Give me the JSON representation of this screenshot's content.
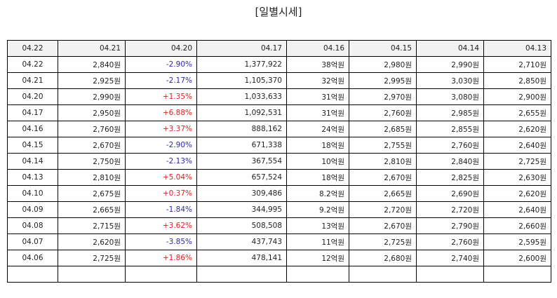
{
  "title": "[일별시세]",
  "colors": {
    "up": "#e02020",
    "down": "#2a2aa8",
    "header_bg": "#f2f2f2"
  },
  "header": [
    "04.22",
    "04.21",
    "04.20",
    "04.17",
    "04.16",
    "04.15",
    "04.14",
    "04.13"
  ],
  "rows": [
    {
      "date": "04.22",
      "close": "2,840원",
      "change": "-2.90%",
      "dir": "down",
      "volume": "1,377,922",
      "amount": "38억원",
      "open": "2,980원",
      "high": "2,990원",
      "low": "2,710원"
    },
    {
      "date": "04.21",
      "close": "2,925원",
      "change": "-2.17%",
      "dir": "down",
      "volume": "1,105,370",
      "amount": "32억원",
      "open": "2,995원",
      "high": "3,030원",
      "low": "2,850원"
    },
    {
      "date": "04.20",
      "close": "2,990원",
      "change": "+1.35%",
      "dir": "up",
      "volume": "1,033,633",
      "amount": "31억원",
      "open": "2,970원",
      "high": "3,080원",
      "low": "2,900원"
    },
    {
      "date": "04.17",
      "close": "2,950원",
      "change": "+6.88%",
      "dir": "up",
      "volume": "1,092,531",
      "amount": "31억원",
      "open": "2,760원",
      "high": "2,985원",
      "low": "2,655원"
    },
    {
      "date": "04.16",
      "close": "2,760원",
      "change": "+3.37%",
      "dir": "up",
      "volume": "888,162",
      "amount": "24억원",
      "open": "2,685원",
      "high": "2,855원",
      "low": "2,620원"
    },
    {
      "date": "04.15",
      "close": "2,670원",
      "change": "-2.90%",
      "dir": "down",
      "volume": "671,338",
      "amount": "18억원",
      "open": "2,755원",
      "high": "2,760원",
      "low": "2,640원"
    },
    {
      "date": "04.14",
      "close": "2,750원",
      "change": "-2.13%",
      "dir": "down",
      "volume": "367,554",
      "amount": "10억원",
      "open": "2,810원",
      "high": "2,840원",
      "low": "2,725원"
    },
    {
      "date": "04.13",
      "close": "2,810원",
      "change": "+5.04%",
      "dir": "up",
      "volume": "657,524",
      "amount": "18억원",
      "open": "2,670원",
      "high": "2,825원",
      "low": "2,630원"
    },
    {
      "date": "04.10",
      "close": "2,675원",
      "change": "+0.37%",
      "dir": "up",
      "volume": "309,486",
      "amount": "8.2억원",
      "open": "2,665원",
      "high": "2,690원",
      "low": "2,620원"
    },
    {
      "date": "04.09",
      "close": "2,665원",
      "change": "-1.84%",
      "dir": "down",
      "volume": "344,995",
      "amount": "9.2억원",
      "open": "2,720원",
      "high": "2,720원",
      "low": "2,640원"
    },
    {
      "date": "04.08",
      "close": "2,715원",
      "change": "+3.62%",
      "dir": "up",
      "volume": "508,508",
      "amount": "13억원",
      "open": "2,670원",
      "high": "2,790원",
      "low": "2,660원"
    },
    {
      "date": "04.07",
      "close": "2,620원",
      "change": "-3.85%",
      "dir": "down",
      "volume": "437,743",
      "amount": "11억원",
      "open": "2,725원",
      "high": "2,760원",
      "low": "2,595원"
    },
    {
      "date": "04.06",
      "close": "2,725원",
      "change": "+1.86%",
      "dir": "up",
      "volume": "478,141",
      "amount": "12억원",
      "open": "2,680원",
      "high": "2,740원",
      "low": "2,600원"
    },
    {
      "date": "",
      "close": "",
      "change": "",
      "dir": "",
      "volume": "",
      "amount": "",
      "open": "",
      "high": "",
      "low": ""
    }
  ]
}
